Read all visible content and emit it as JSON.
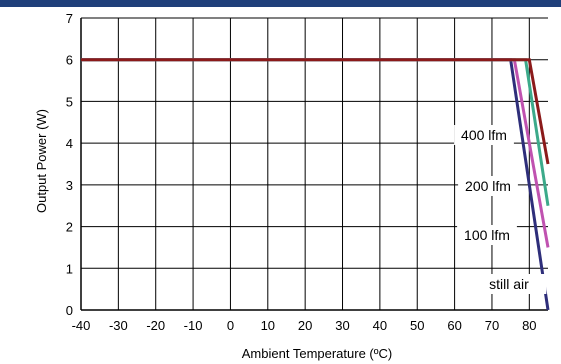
{
  "colors": {
    "header_bar": "#1f3f7a",
    "grid": "#000000",
    "still_air": "#2e2e7a",
    "lfm_100": "#c052b0",
    "lfm_200": "#3caa8a",
    "lfm_400": "#8b1a1a"
  },
  "chart_data": {
    "type": "line",
    "xlabel": "Ambient Temperature (ºC)",
    "ylabel": "Output Power (W)",
    "xlim": [
      -40,
      85
    ],
    "ylim": [
      0,
      7
    ],
    "x_ticks": [
      "-40",
      "-30",
      "-20",
      "-10",
      "0",
      "10",
      "20",
      "30",
      "40",
      "50",
      "60",
      "70",
      "80"
    ],
    "y_ticks": [
      "0",
      "1",
      "2",
      "3",
      "4",
      "5",
      "6",
      "7"
    ],
    "grid": true,
    "series": [
      {
        "name": "still air",
        "color_key": "still_air",
        "x": [
          -40,
          75,
          85
        ],
        "y": [
          6,
          6,
          0
        ]
      },
      {
        "name": "100 lfm",
        "color_key": "lfm_100",
        "x": [
          -40,
          76,
          85
        ],
        "y": [
          6,
          6,
          1.5
        ]
      },
      {
        "name": "200 lfm",
        "color_key": "lfm_200",
        "x": [
          -40,
          79,
          85
        ],
        "y": [
          6,
          6,
          2.5
        ]
      },
      {
        "name": "400 lfm",
        "color_key": "lfm_400",
        "x": [
          -40,
          80,
          85
        ],
        "y": [
          6,
          6,
          3.5
        ]
      }
    ],
    "annotations": [
      "400 lfm",
      "200 lfm",
      "100 lfm",
      "still air"
    ]
  }
}
